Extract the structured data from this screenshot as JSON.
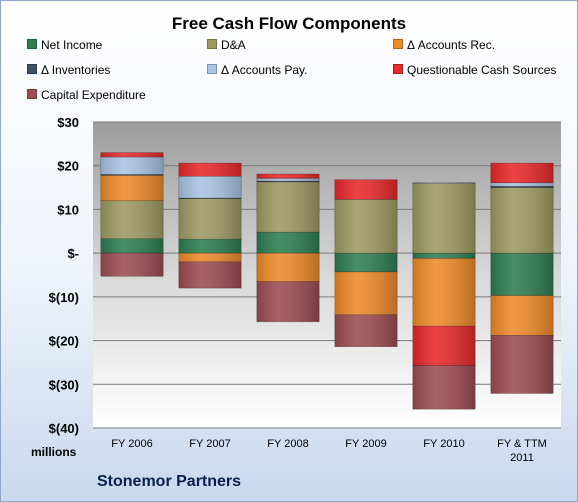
{
  "chart_data": {
    "type": "bar",
    "stacked": true,
    "title": "Free Cash Flow Components",
    "categories": [
      "FY 2006",
      "FY 2007",
      "FY 2008",
      "FY 2009",
      "FY 2010",
      "FY & TTM\n2011"
    ],
    "ylim": [
      -40,
      30
    ],
    "yticks": [
      30,
      20,
      10,
      0,
      -10,
      -20,
      -30,
      -40
    ],
    "ytick_labels": [
      "$30",
      "$20",
      "$10",
      "$-",
      "$(10)",
      "$(20)",
      "$(30)",
      "$(40)"
    ],
    "units_label": "millions",
    "grid": true,
    "legend_position": "top",
    "series": [
      {
        "name": "Net Income",
        "color": "#2e7d52",
        "values": [
          3.3,
          3.2,
          4.8,
          -4.3,
          -1.2,
          -9.7
        ]
      },
      {
        "name": "D&A",
        "color": "#9e9a62",
        "values": [
          8.7,
          9.3,
          11.5,
          12.3,
          16.0,
          15.0
        ]
      },
      {
        "name": "Δ Accounts Rec.",
        "color": "#ee8a2a",
        "values": [
          5.8,
          -2.0,
          -6.5,
          -9.8,
          -15.5,
          -9.1
        ]
      },
      {
        "name": "Δ Inventories",
        "color": "#3a4f66",
        "values": [
          0.2,
          0.1,
          0.2,
          0.0,
          0.0,
          0.3
        ]
      },
      {
        "name": "Δ Accounts Pay.",
        "color": "#a9c4e4",
        "values": [
          4.0,
          5.0,
          0.6,
          0.0,
          0.2,
          0.8
        ]
      },
      {
        "name": "Questionable Cash Sources",
        "color": "#e8282a",
        "values": [
          1.0,
          3.0,
          1.0,
          4.5,
          -9.0,
          4.5
        ]
      },
      {
        "name": "Capital Expenditure",
        "color": "#9c4c52",
        "values": [
          -5.3,
          -6.0,
          -9.2,
          -7.3,
          -10.0,
          -13.3
        ]
      }
    ]
  },
  "footer": {
    "company": "Stonemor Partners"
  }
}
